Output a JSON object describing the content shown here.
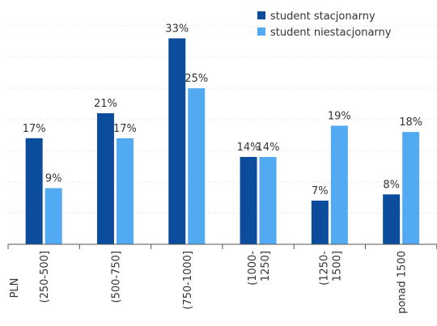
{
  "chart_data": {
    "type": "bar",
    "title": "",
    "xlabel": "",
    "ylabel": "",
    "unit_label": "PLN",
    "categories": [
      [
        "(250-500]"
      ],
      [
        "(500-750]"
      ],
      [
        "(750-1000]"
      ],
      [
        "(1000-",
        "1250]"
      ],
      [
        "(1250-",
        "1500]"
      ],
      [
        "ponad 1500"
      ]
    ],
    "series": [
      {
        "name": "student stacjonarny",
        "color": "#0b4d9c",
        "values": [
          17,
          21,
          33,
          14,
          7,
          8
        ],
        "labels": [
          "17%",
          "21%",
          "33%",
          "14%",
          "7%",
          "8%"
        ]
      },
      {
        "name": "student niestacjonarny",
        "color": "#52aaf2",
        "values": [
          9,
          17,
          25,
          14,
          19,
          18
        ],
        "labels": [
          "9%",
          "17%",
          "25%",
          "14%",
          "19%",
          "18%"
        ]
      }
    ],
    "ylim": [
      0,
      35
    ],
    "grid": true,
    "legend_position": "top-right"
  }
}
